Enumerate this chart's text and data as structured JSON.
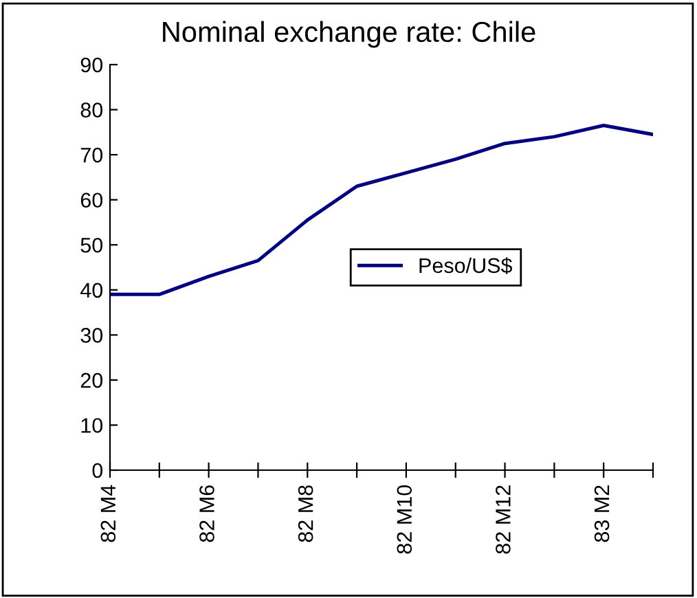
{
  "chart_data": {
    "type": "line",
    "title": "Nominal exchange rate: Chile",
    "categories": [
      "82 M4",
      null,
      "82 M6",
      null,
      "82 M8",
      null,
      "82 M10",
      null,
      "82 M12",
      null,
      "83 M2",
      null
    ],
    "series": [
      {
        "name": "Peso/US$",
        "color": "#000080",
        "values": [
          39,
          39,
          43,
          46.5,
          55.5,
          63,
          66,
          69,
          72.5,
          74,
          76.5,
          74.5
        ]
      }
    ],
    "ylim": [
      0,
      90
    ],
    "yticks": [
      0,
      10,
      20,
      30,
      40,
      50,
      60,
      70,
      80,
      90
    ],
    "grid": false,
    "legend": "center",
    "marker": "none",
    "line_style": "solid"
  }
}
